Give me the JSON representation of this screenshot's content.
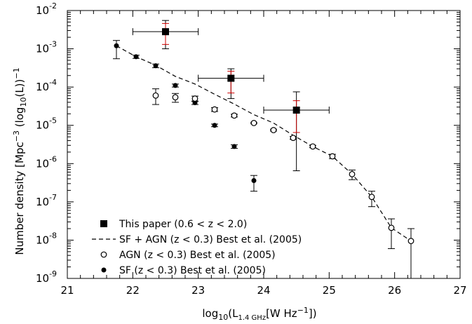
{
  "chart_data": {
    "type": "scatter",
    "title": "",
    "xlabel": {
      "pre": "log",
      "sub1": "10",
      "mid": "(L",
      "sub2": "1.4 GHz",
      "mid2": "[W Hz",
      "sup": "−1",
      "post": "])"
    },
    "ylabel": {
      "pre": "Number density [Mpc",
      "sup": "−3",
      "mid": " (log",
      "sub": "10",
      "post": "(L))",
      "sup2": "−1"
    },
    "xlim": [
      21,
      27
    ],
    "ylim_log10": [
      -9,
      -2
    ],
    "yscale": "log",
    "x_ticks": [
      "21",
      "22",
      "23",
      "24",
      "25",
      "26",
      "27"
    ],
    "y_ticks": [
      {
        "exp": -2,
        "base": "10",
        "sup": "-2"
      },
      {
        "exp": -3,
        "base": "10",
        "sup": "-3"
      },
      {
        "exp": -4,
        "base": "10",
        "sup": "-4"
      },
      {
        "exp": -5,
        "base": "10",
        "sup": "-5"
      },
      {
        "exp": -6,
        "base": "10",
        "sup": "-6"
      },
      {
        "exp": -7,
        "base": "10",
        "sup": "-7"
      },
      {
        "exp": -8,
        "base": "10",
        "sup": "-8"
      },
      {
        "exp": -9,
        "base": "10",
        "sup": "-9"
      }
    ],
    "legend_placement": "bottom-left",
    "legend": [
      "This paper (0.6 < z < 2.0)",
      "SF + AGN (z < 0.3) Best et al. (2005)",
      "AGN (z < 0.3) Best et al. (2005)",
      "SF (z < 0.3) Best et al. (2005)"
    ],
    "colors": {
      "axis": "#000000",
      "red_errorbar": "#cc0000"
    },
    "series": [
      {
        "name": "This paper (0.6 < z < 2.0)",
        "marker": "filled-square",
        "points": [
          {
            "x": 22.5,
            "y": 0.0028,
            "xerr": [
              22.0,
              23.0
            ],
            "yerr": [
              0.001,
              0.0055
            ],
            "yerr_red": [
              0.0013,
              0.0046
            ]
          },
          {
            "x": 23.5,
            "y": 0.00017,
            "xerr": [
              23.0,
              24.0
            ],
            "yerr": [
              5e-05,
              0.0003
            ],
            "yerr_red": [
              7e-05,
              0.00026
            ]
          },
          {
            "x": 24.5,
            "y": 2.5e-05,
            "xerr": [
              24.0,
              25.0
            ],
            "yerr": [
              6.5e-07,
              7.5e-05
            ],
            "yerr_red": [
              6.5e-06,
              4.4e-05
            ]
          }
        ]
      },
      {
        "name": "SF + AGN (z < 0.3) Best et al. (2005)",
        "marker": "dashed-line",
        "points": [
          {
            "x": 21.75,
            "y": 0.0012
          },
          {
            "x": 22.05,
            "y": 0.00062
          },
          {
            "x": 22.35,
            "y": 0.00037
          },
          {
            "x": 22.65,
            "y": 0.00019
          },
          {
            "x": 22.95,
            "y": 0.00012
          },
          {
            "x": 23.25,
            "y": 6.5e-05
          },
          {
            "x": 23.55,
            "y": 3.6e-05
          },
          {
            "x": 23.85,
            "y": 1.9e-05
          },
          {
            "x": 24.15,
            "y": 1.15e-05
          },
          {
            "x": 24.45,
            "y": 5.5e-06
          },
          {
            "x": 24.75,
            "y": 2.8e-06
          },
          {
            "x": 25.05,
            "y": 1.55e-06
          },
          {
            "x": 25.35,
            "y": 5.3e-07
          },
          {
            "x": 25.65,
            "y": 1.35e-07
          },
          {
            "x": 25.95,
            "y": 2.1e-08
          },
          {
            "x": 26.25,
            "y": 9.5e-09
          }
        ]
      },
      {
        "name": "AGN (z < 0.3) Best et al. (2005)",
        "marker": "open-circle",
        "points": [
          {
            "x": 22.35,
            "y": 6e-05,
            "yerr": [
              3.5e-05,
              9e-05
            ]
          },
          {
            "x": 22.65,
            "y": 5.4e-05,
            "yerr": [
              4e-05,
              6.8e-05
            ]
          },
          {
            "x": 22.95,
            "y": 5e-05,
            "yerr": [
              4.2e-05,
              5.8e-05
            ]
          },
          {
            "x": 23.25,
            "y": 2.6e-05,
            "yerr": [
              2.3e-05,
              2.9e-05
            ]
          },
          {
            "x": 23.55,
            "y": 1.8e-05,
            "yerr": [
              1.65e-05,
              1.95e-05
            ]
          },
          {
            "x": 23.85,
            "y": 1.15e-05,
            "yerr": [
              1.1e-05,
              1.2e-05
            ]
          },
          {
            "x": 24.15,
            "y": 7.5e-06,
            "yerr": [
              7.1e-06,
              7.9e-06
            ]
          },
          {
            "x": 24.45,
            "y": 4.7e-06,
            "yerr": [
              4.3e-06,
              5.1e-06
            ]
          },
          {
            "x": 24.75,
            "y": 2.8e-06,
            "yerr": [
              2.6e-06,
              3e-06
            ]
          },
          {
            "x": 25.05,
            "y": 1.55e-06,
            "yerr": [
              1.35e-06,
              1.75e-06
            ]
          },
          {
            "x": 25.35,
            "y": 5.3e-07,
            "yerr": [
              3.8e-07,
              6.8e-07
            ]
          },
          {
            "x": 25.65,
            "y": 1.35e-07,
            "yerr": [
              7.5e-08,
              1.9e-07
            ]
          },
          {
            "x": 25.95,
            "y": 2.1e-08,
            "yerr": [
              6e-09,
              3.6e-08
            ]
          },
          {
            "x": 26.25,
            "y": 9.5e-09,
            "yerr": [
              1e-09,
              2e-08
            ]
          }
        ]
      },
      {
        "name": "SF (z < 0.3) Best et al. (2005)",
        "marker": "filled-circle",
        "points": [
          {
            "x": 21.75,
            "y": 0.0012,
            "yerr": [
              0.00055,
              0.00165
            ]
          },
          {
            "x": 22.05,
            "y": 0.00062,
            "yerr": [
              0.00056,
              0.00068
            ]
          },
          {
            "x": 22.35,
            "y": 0.00036,
            "yerr": [
              0.00032,
              0.0004
            ]
          },
          {
            "x": 22.65,
            "y": 0.00011,
            "yerr": [
              0.0001,
              0.00012
            ]
          },
          {
            "x": 22.95,
            "y": 3.9e-05,
            "yerr": [
              3.5e-05,
              4.3e-05
            ]
          },
          {
            "x": 23.25,
            "y": 1e-05,
            "yerr": [
              9.2e-06,
              1.08e-05
            ]
          },
          {
            "x": 23.55,
            "y": 2.8e-06,
            "yerr": [
              2.5e-06,
              3.1e-06
            ]
          },
          {
            "x": 23.85,
            "y": 3.6e-07,
            "yerr": [
              1.9e-07,
              4.9e-07
            ]
          }
        ]
      }
    ]
  }
}
